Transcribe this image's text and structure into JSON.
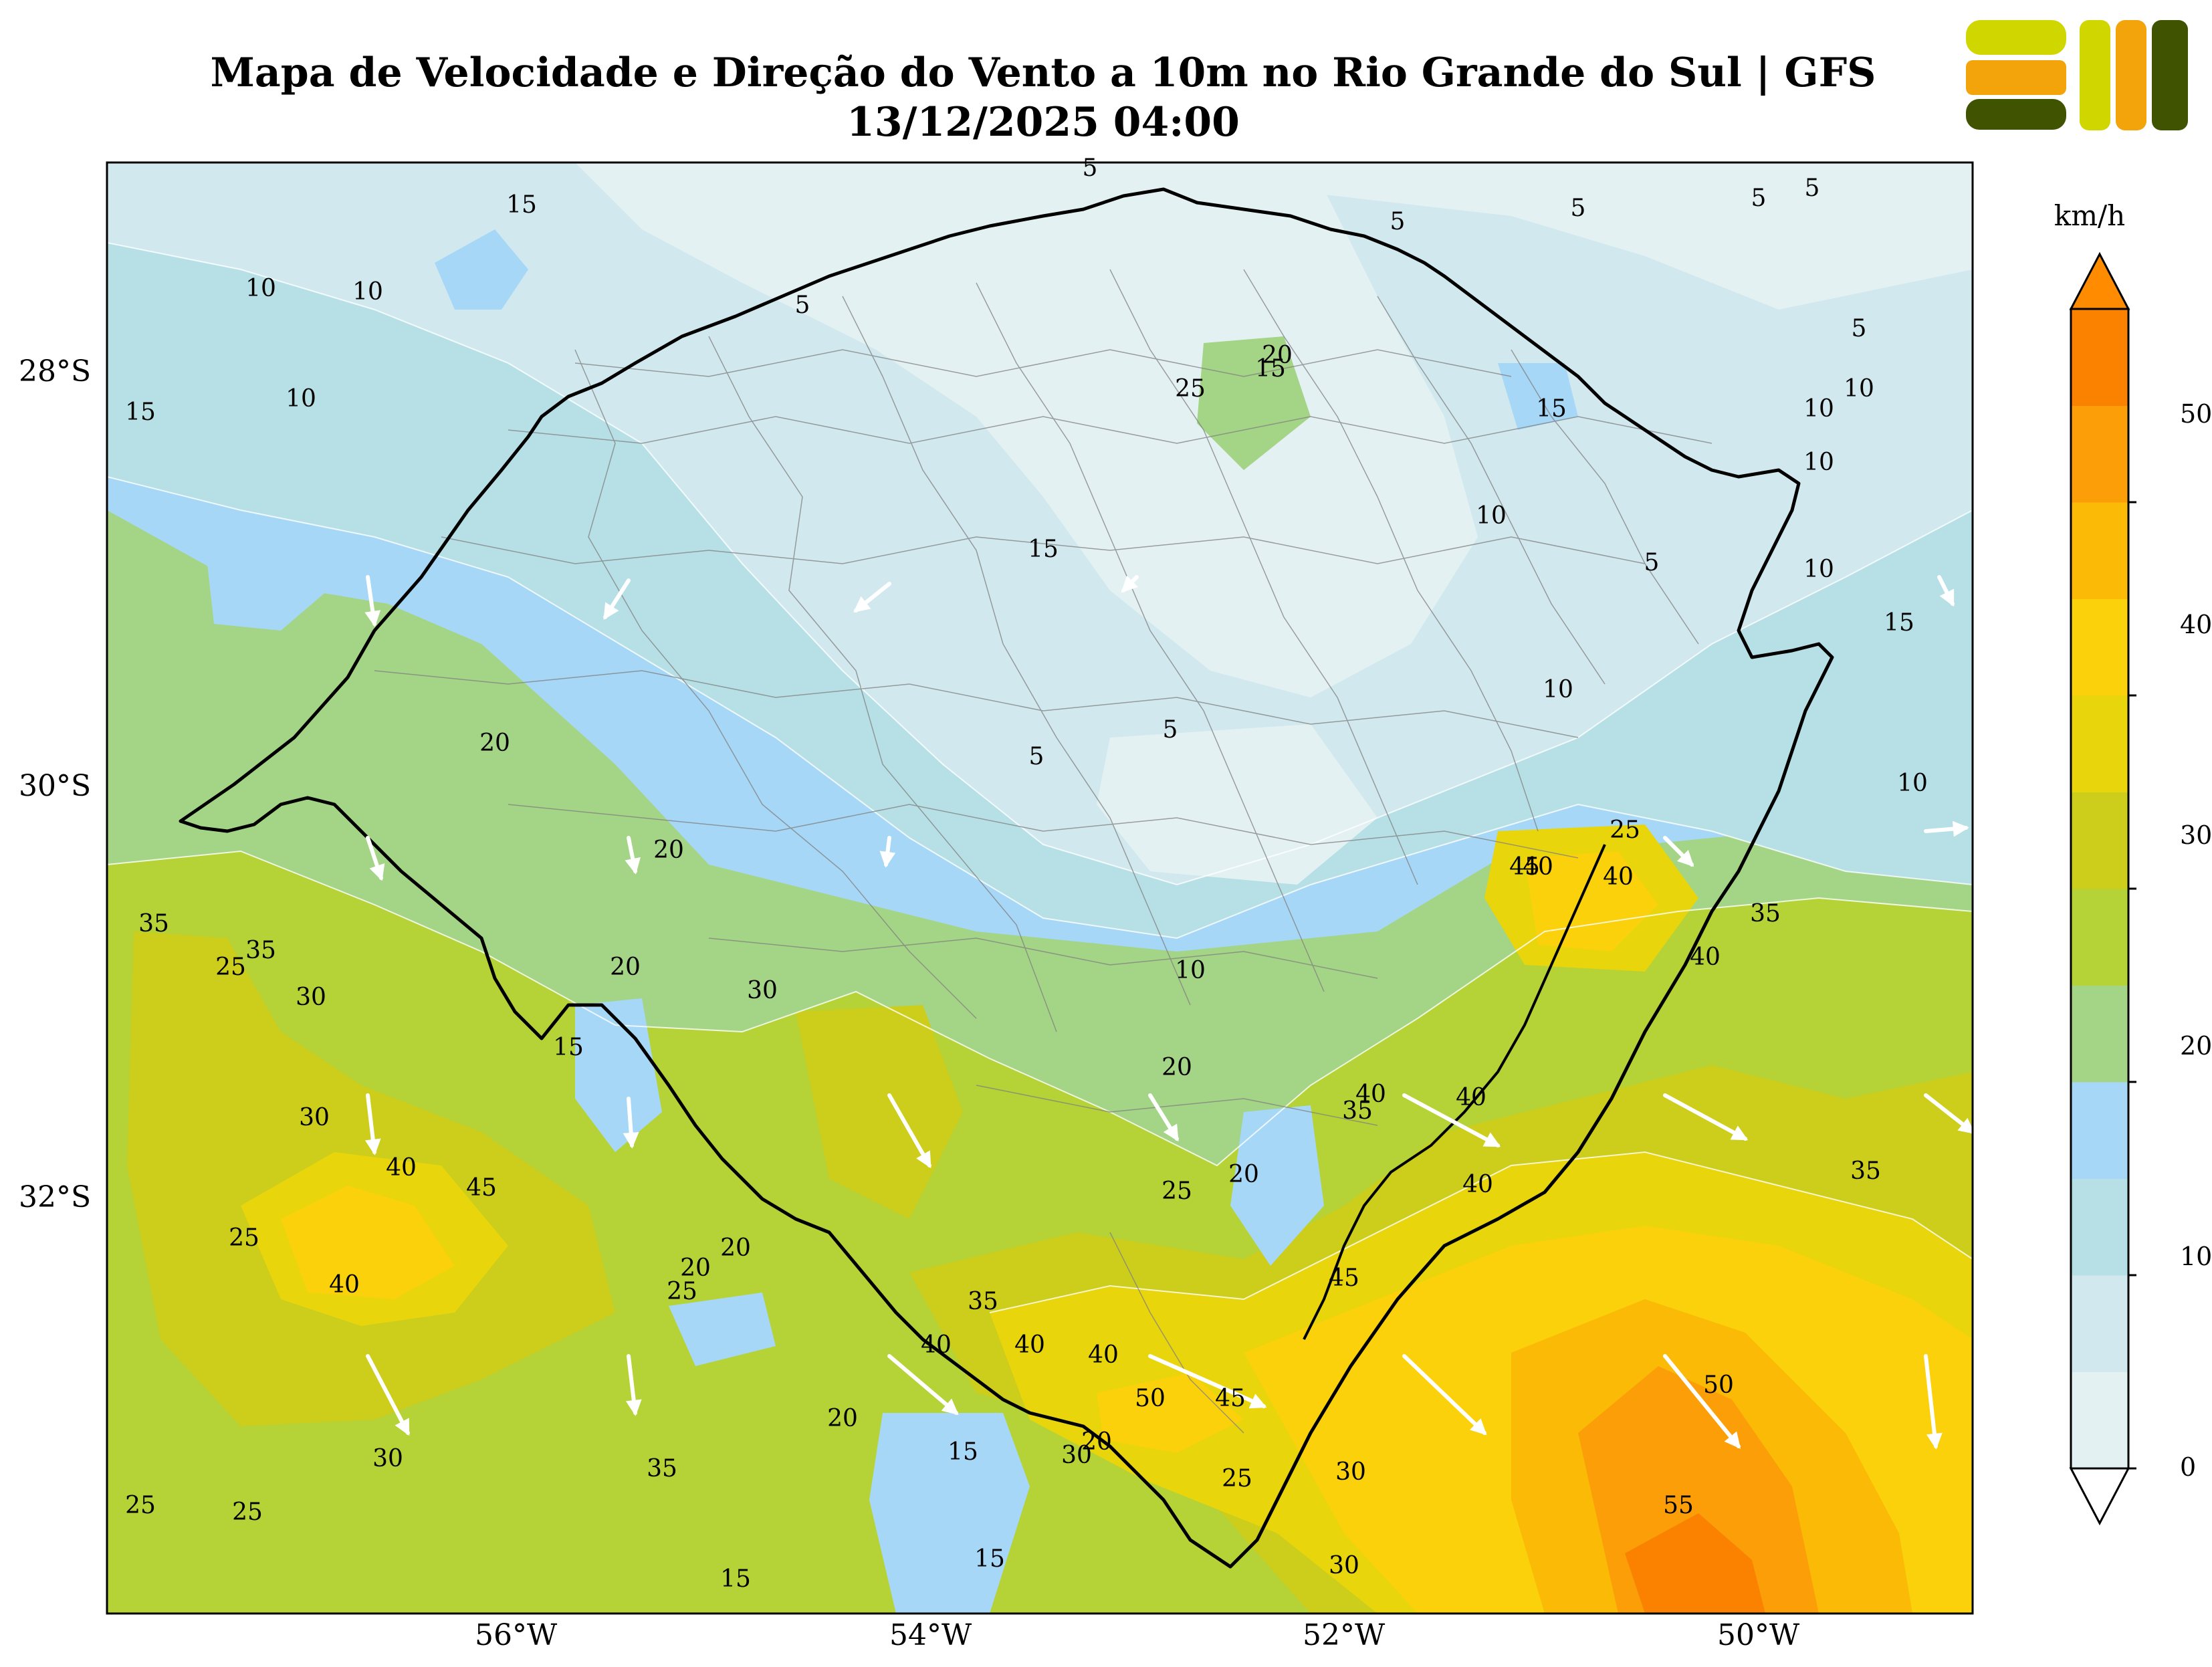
{
  "title": {
    "line1": "Mapa de Velocidade e Direção do Vento a 10m no Rio Grande do Sul | GFS",
    "line2": "13/12/2025 04:00"
  },
  "colors": {
    "accent_orange": "#ff8c00",
    "state_border": "#000000",
    "municipal_borders": "#808080",
    "wind_arrows": "#ffffff"
  },
  "axes": {
    "x_ticks": [
      "56°W",
      "54°W",
      "52°W",
      "50°W"
    ],
    "y_ticks": [
      "28°S",
      "30°S",
      "32°S"
    ]
  },
  "colorbar": {
    "unit": "km/h",
    "ticks": [
      "0",
      "10",
      "20",
      "30",
      "40",
      "50"
    ],
    "levels": [
      0,
      5,
      10,
      15,
      20,
      25,
      30,
      35,
      40,
      45,
      50,
      55
    ],
    "colors": [
      "#e4f1f3",
      "#d1e9ee",
      "#b6e0e6",
      "#a7d7f7",
      "#a4d485",
      "#b5d236",
      "#cdcd1c",
      "#e8d50c",
      "#fad10a",
      "#fbba05",
      "#fb9e08",
      "#fb8100"
    ],
    "extend": "both"
  },
  "contour_labels": [
    "5",
    "5",
    "5",
    "5",
    "5",
    "5",
    "5",
    "5",
    "5",
    "5",
    "10",
    "10",
    "10",
    "10",
    "10",
    "10",
    "10",
    "10",
    "10",
    "10",
    "10",
    "15",
    "15",
    "15",
    "15",
    "15",
    "15",
    "15",
    "15",
    "15",
    "15",
    "20",
    "20",
    "20",
    "20",
    "20",
    "20",
    "20",
    "20",
    "20",
    "20",
    "25",
    "25",
    "25",
    "25",
    "25",
    "25",
    "25",
    "25",
    "25",
    "30",
    "30",
    "30",
    "30",
    "30",
    "30",
    "30",
    "35",
    "35",
    "35",
    "35",
    "35",
    "35",
    "35",
    "40",
    "40",
    "40",
    "40",
    "40",
    "40",
    "40",
    "40",
    "40",
    "40",
    "40",
    "45",
    "45",
    "45",
    "45",
    "50",
    "50",
    "55"
  ]
}
